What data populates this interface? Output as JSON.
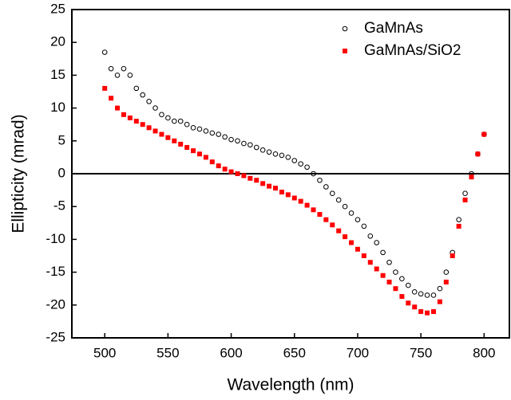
{
  "chart_data": {
    "type": "scatter",
    "x_label": "Wavelength (nm)",
    "y_label": "Ellipticity (mrad)",
    "x": [
      500,
      505,
      510,
      515,
      520,
      525,
      530,
      535,
      540,
      545,
      550,
      555,
      560,
      565,
      570,
      575,
      580,
      585,
      590,
      595,
      600,
      605,
      610,
      615,
      620,
      625,
      630,
      635,
      640,
      645,
      650,
      655,
      660,
      665,
      670,
      675,
      680,
      685,
      690,
      695,
      700,
      705,
      710,
      715,
      720,
      725,
      730,
      735,
      740,
      745,
      750,
      755,
      760,
      765,
      770,
      775,
      780,
      785,
      790,
      795,
      800
    ],
    "series": [
      {
        "name": "GaMnAs",
        "color": "#000000",
        "marker": "open-circle",
        "values": [
          18.5,
          16,
          15,
          16,
          15,
          13,
          12,
          11,
          10,
          9,
          8.5,
          8,
          8,
          7.5,
          7,
          6.8,
          6.5,
          6.2,
          6,
          5.6,
          5.2,
          5,
          4.6,
          4.4,
          4,
          3.6,
          3.3,
          3,
          2.8,
          2.5,
          2,
          1.5,
          1,
          0,
          -1,
          -2,
          -3,
          -4,
          -5,
          -6,
          -7,
          -8,
          -9.5,
          -10.5,
          -12,
          -13.5,
          -15,
          -16,
          -17,
          -18,
          -18.3,
          -18.5,
          -18.5,
          -17.5,
          -15,
          -12,
          -7,
          -3,
          0,
          3,
          6
        ]
      },
      {
        "name": "GaMnAs/SiO2",
        "color": "#ff0000",
        "marker": "square",
        "values": [
          13,
          11.5,
          10,
          9,
          8.5,
          8,
          7.5,
          7,
          6.5,
          6,
          5.5,
          5,
          4.5,
          4,
          3.5,
          3,
          2.5,
          1.8,
          1.2,
          0.7,
          0.3,
          0,
          -0.3,
          -0.7,
          -1,
          -1.5,
          -1.9,
          -2.2,
          -2.8,
          -3.2,
          -3.7,
          -4.2,
          -4.8,
          -5.5,
          -6.2,
          -7,
          -7.8,
          -8.7,
          -9.6,
          -10.5,
          -11.5,
          -12.5,
          -13.5,
          -14.5,
          -15.5,
          -16.5,
          -17.5,
          -18.7,
          -19.7,
          -20.3,
          -21,
          -21.2,
          -21,
          -19.5,
          -16.5,
          -12.5,
          -8,
          -4,
          -0.5,
          3,
          6
        ]
      }
    ],
    "xlim": [
      474,
      820
    ],
    "ylim": [
      -25,
      25
    ],
    "xticks": [
      500,
      550,
      600,
      650,
      700,
      750,
      800
    ],
    "yticks": [
      -25,
      -20,
      -15,
      -10,
      -5,
      0,
      5,
      10,
      15,
      20,
      25
    ],
    "reference_line": 0,
    "legend": "upper right"
  }
}
